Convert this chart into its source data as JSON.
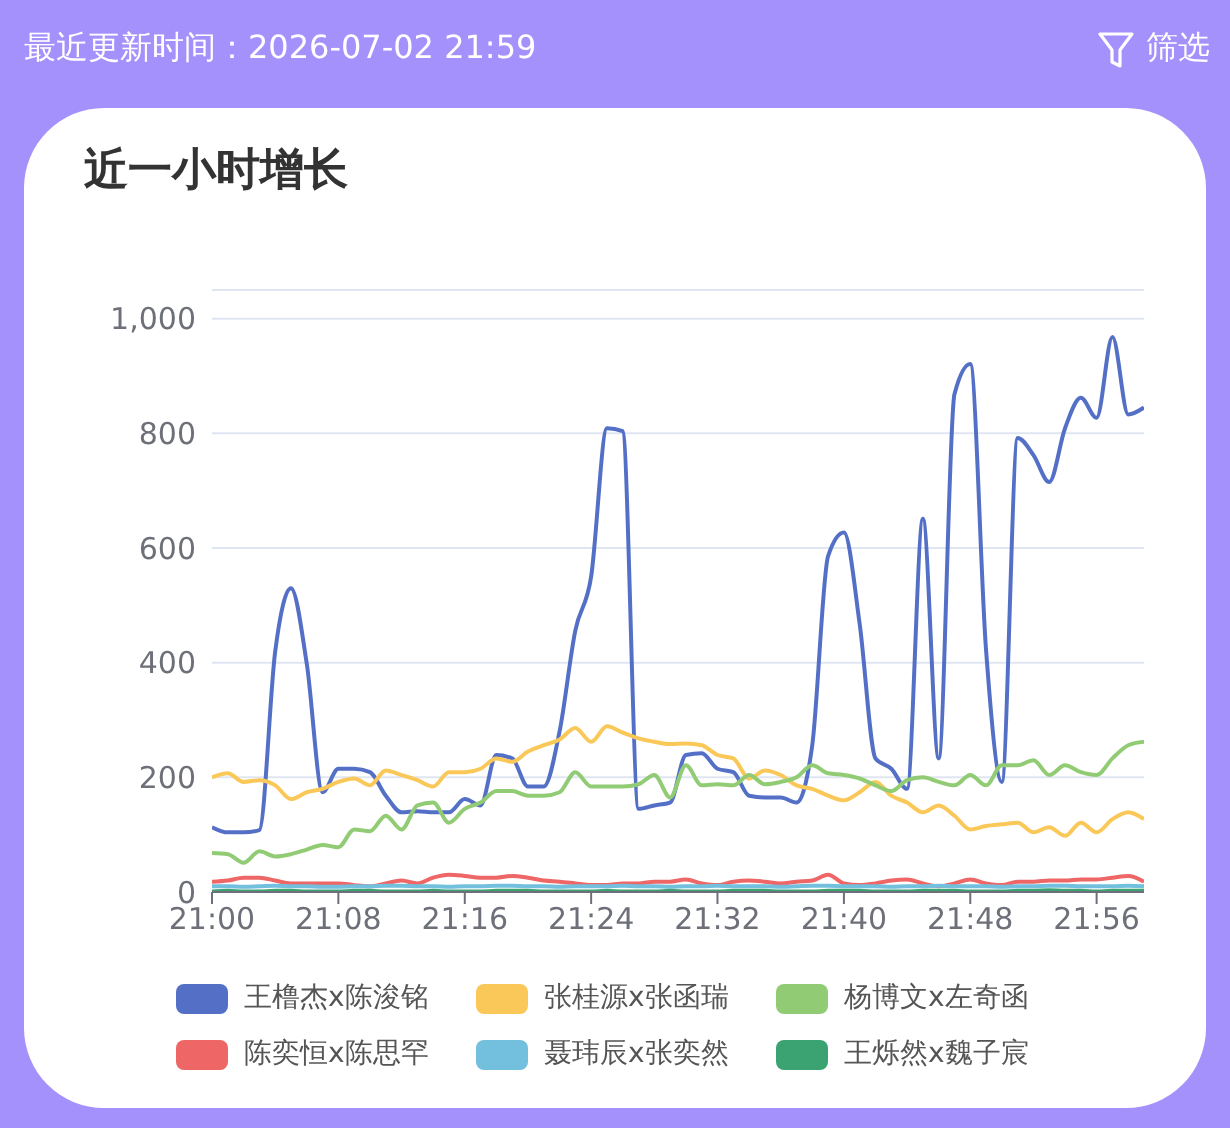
{
  "chart_data": {
    "type": "line",
    "title": "近一小时增长",
    "annotations": [
      "最近更新时间：2026-07-02 21:59",
      "筛选"
    ],
    "x": [
      21,
      21.0167,
      21.0333,
      21.05,
      21.0667,
      21.0833,
      21.1,
      21.1167,
      21.1333,
      21.15,
      21.1667,
      21.1833,
      21.2,
      21.2167,
      21.2333,
      21.25,
      21.2667,
      21.2833,
      21.3,
      21.3167,
      21.3333,
      21.35,
      21.3667,
      21.3833,
      21.4,
      21.4167,
      21.4333,
      21.45,
      21.4667,
      21.4833,
      21.5,
      21.5167,
      21.5333,
      21.55,
      21.5667,
      21.5833,
      21.6,
      21.6167,
      21.6333,
      21.65,
      21.6667,
      21.6833,
      21.7,
      21.7167,
      21.7333,
      21.75,
      21.7667,
      21.7833,
      21.8,
      21.8167,
      21.8333,
      21.85,
      21.8667,
      21.8833,
      21.9,
      21.9167,
      21.9333,
      21.95,
      21.9667,
      21.9833
    ],
    "xlim": [
      21,
      21.9833
    ],
    "xticks": [
      {
        "value": 21,
        "label": "21:00"
      },
      {
        "value": 21.1333,
        "label": "21:08"
      },
      {
        "value": 21.2667,
        "label": "21:16"
      },
      {
        "value": 21.4,
        "label": "21:24"
      },
      {
        "value": 21.5333,
        "label": "21:32"
      },
      {
        "value": 21.6667,
        "label": "21:40"
      },
      {
        "value": 21.8,
        "label": "21:48"
      },
      {
        "value": 21.9333,
        "label": "21:56"
      }
    ],
    "ylim": [
      0,
      1050
    ],
    "yticks": [
      0,
      200,
      400,
      600,
      800,
      {
        "value": 1000,
        "label": "1,000"
      },
      {
        "value": 1050,
        "label": null
      }
    ],
    "grid": "y",
    "legend": "bottom",
    "marker": "none",
    "line_style": "solid",
    "series": [
      {
        "name": "王橹杰x陈浚铭",
        "color": "#5470c6",
        "values": [
          113,
          104,
          104,
          108,
          420,
          530,
          398,
          174,
          215,
          215,
          209,
          168,
          139,
          141,
          139,
          139,
          162,
          151,
          239,
          233,
          184,
          184,
          280,
          456,
          550,
          809,
          804,
          145,
          151,
          156,
          239,
          242,
          215,
          209,
          168,
          165,
          165,
          156,
          256,
          586,
          627,
          468,
          233,
          215,
          180,
          651,
          233,
          868,
          921,
          421,
          192,
          792,
          762,
          715,
          809,
          862,
          827,
          968,
          833,
          845
        ]
      },
      {
        "name": "张桂源x张函瑞",
        "color": "#fac858",
        "values": [
          200,
          207,
          192,
          195,
          186,
          162,
          174,
          180,
          192,
          198,
          186,
          212,
          204,
          195,
          184,
          209,
          209,
          215,
          233,
          227,
          245,
          256,
          266,
          286,
          262,
          289,
          278,
          268,
          262,
          258,
          259,
          256,
          239,
          233,
          198,
          212,
          204,
          186,
          180,
          168,
          160,
          174,
          192,
          168,
          156,
          139,
          151,
          133,
          109,
          115,
          118,
          121,
          104,
          113,
          98,
          121,
          104,
          127,
          139,
          127
        ]
      },
      {
        "name": "杨博文x左奇函",
        "color": "#91cc75",
        "values": [
          68,
          66,
          51,
          71,
          62,
          66,
          74,
          82,
          78,
          109,
          106,
          133,
          109,
          151,
          156,
          121,
          145,
          156,
          176,
          176,
          168,
          168,
          174,
          209,
          184,
          184,
          184,
          188,
          204,
          165,
          221,
          186,
          188,
          186,
          204,
          188,
          192,
          200,
          221,
          207,
          204,
          198,
          186,
          176,
          195,
          200,
          192,
          186,
          204,
          186,
          221,
          221,
          230,
          204,
          221,
          209,
          204,
          233,
          256,
          262
        ]
      },
      {
        "name": "陈奕恒x陈思罕",
        "color": "#ee6666",
        "values": [
          18,
          20,
          25,
          25,
          20,
          15,
          15,
          15,
          15,
          12,
          10,
          15,
          20,
          15,
          25,
          30,
          28,
          25,
          25,
          28,
          25,
          20,
          18,
          15,
          12,
          12,
          15,
          15,
          18,
          18,
          22,
          15,
          12,
          18,
          20,
          18,
          15,
          18,
          20,
          30,
          15,
          12,
          15,
          20,
          22,
          15,
          10,
          15,
          22,
          15,
          12,
          18,
          18,
          20,
          20,
          22,
          22,
          25,
          28,
          18
        ]
      },
      {
        "name": "聂玮辰x张奕然",
        "color": "#73c0de",
        "values": [
          10,
          10,
          9,
          10,
          11,
          10,
          10,
          9,
          9,
          10,
          10,
          11,
          11,
          10,
          10,
          9,
          10,
          10,
          11,
          11,
          10,
          10,
          9,
          10,
          10,
          10,
          11,
          10,
          10,
          9,
          10,
          10,
          11,
          10,
          10,
          10,
          9,
          10,
          11,
          11,
          10,
          10,
          10,
          9,
          10,
          10,
          11,
          10,
          10,
          10,
          9,
          10,
          10,
          11,
          11,
          10,
          10,
          10,
          11,
          10
        ]
      },
      {
        "name": "王烁然x魏子宸",
        "color": "#3ba272",
        "values": [
          1,
          2,
          1,
          1,
          2,
          2,
          1,
          1,
          1,
          2,
          2,
          1,
          1,
          1,
          2,
          1,
          1,
          1,
          2,
          2,
          2,
          1,
          1,
          1,
          1,
          2,
          1,
          1,
          1,
          2,
          1,
          1,
          1,
          2,
          2,
          2,
          1,
          1,
          1,
          2,
          2,
          2,
          1,
          1,
          1,
          2,
          2,
          2,
          1,
          1,
          1,
          2,
          2,
          3,
          2,
          2,
          1,
          2,
          2,
          2
        ]
      }
    ]
  }
}
